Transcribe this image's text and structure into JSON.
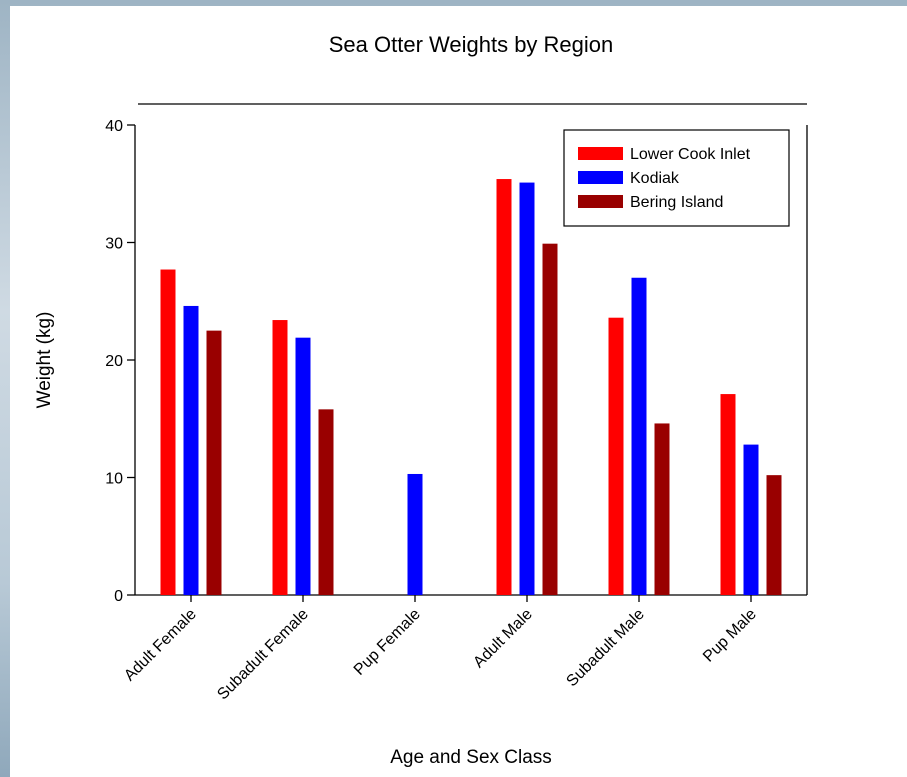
{
  "chart_data": {
    "type": "bar",
    "title": "Sea Otter Weights by Region",
    "xlabel": "Age and Sex Class",
    "ylabel": "Weight (kg)",
    "ylim": [
      0,
      40
    ],
    "yticks": [
      0,
      10,
      20,
      30,
      40
    ],
    "categories": [
      "Adult Female",
      "Subadult Female",
      "Pup Female",
      "Adult Male",
      "Subadult Male",
      "Pup Male"
    ],
    "series": [
      {
        "name": "Lower Cook Inlet",
        "color": "#ff0000",
        "values": [
          27.7,
          23.4,
          null,
          35.4,
          23.6,
          17.1
        ]
      },
      {
        "name": "Kodiak",
        "color": "#0000ff",
        "values": [
          24.6,
          21.9,
          10.3,
          35.1,
          27.0,
          12.8
        ]
      },
      {
        "name": "Bering Island",
        "color": "#990000",
        "values": [
          22.5,
          15.8,
          null,
          29.9,
          14.6,
          10.2
        ]
      }
    ],
    "legend_position": "top-right",
    "grid": false
  }
}
